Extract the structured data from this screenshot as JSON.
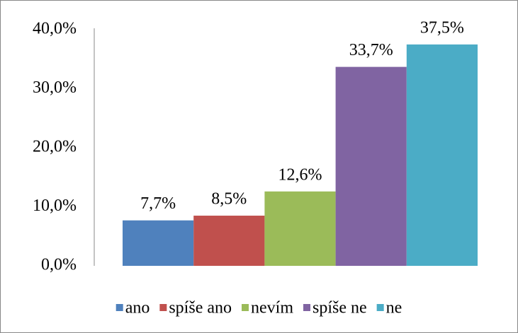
{
  "chart_data": {
    "type": "bar",
    "series": [
      {
        "name": "ano",
        "color": "#4f81bd",
        "values": [
          7.7
        ],
        "value_labels": [
          "7,7%"
        ]
      },
      {
        "name": "spíše ano",
        "color": "#c0504d",
        "values": [
          8.5
        ],
        "value_labels": [
          "8,5%"
        ]
      },
      {
        "name": "nevím",
        "color": "#9bbb59",
        "values": [
          12.6
        ],
        "value_labels": [
          "12,6%"
        ]
      },
      {
        "name": "spíše ne",
        "color": "#8064a2",
        "values": [
          33.7
        ],
        "value_labels": [
          "33,7%"
        ]
      },
      {
        "name": "ne",
        "color": "#4bacc6",
        "values": [
          37.5
        ],
        "value_labels": [
          "37,5%"
        ]
      }
    ],
    "ylim": [
      0,
      40
    ],
    "yticks": [
      {
        "value": 0,
        "label": "0,0%"
      },
      {
        "value": 10,
        "label": "10,0%"
      },
      {
        "value": 20,
        "label": "20,0%"
      },
      {
        "value": 30,
        "label": "30,0%"
      },
      {
        "value": 40,
        "label": "40,0%"
      }
    ],
    "legend": "bottom"
  }
}
